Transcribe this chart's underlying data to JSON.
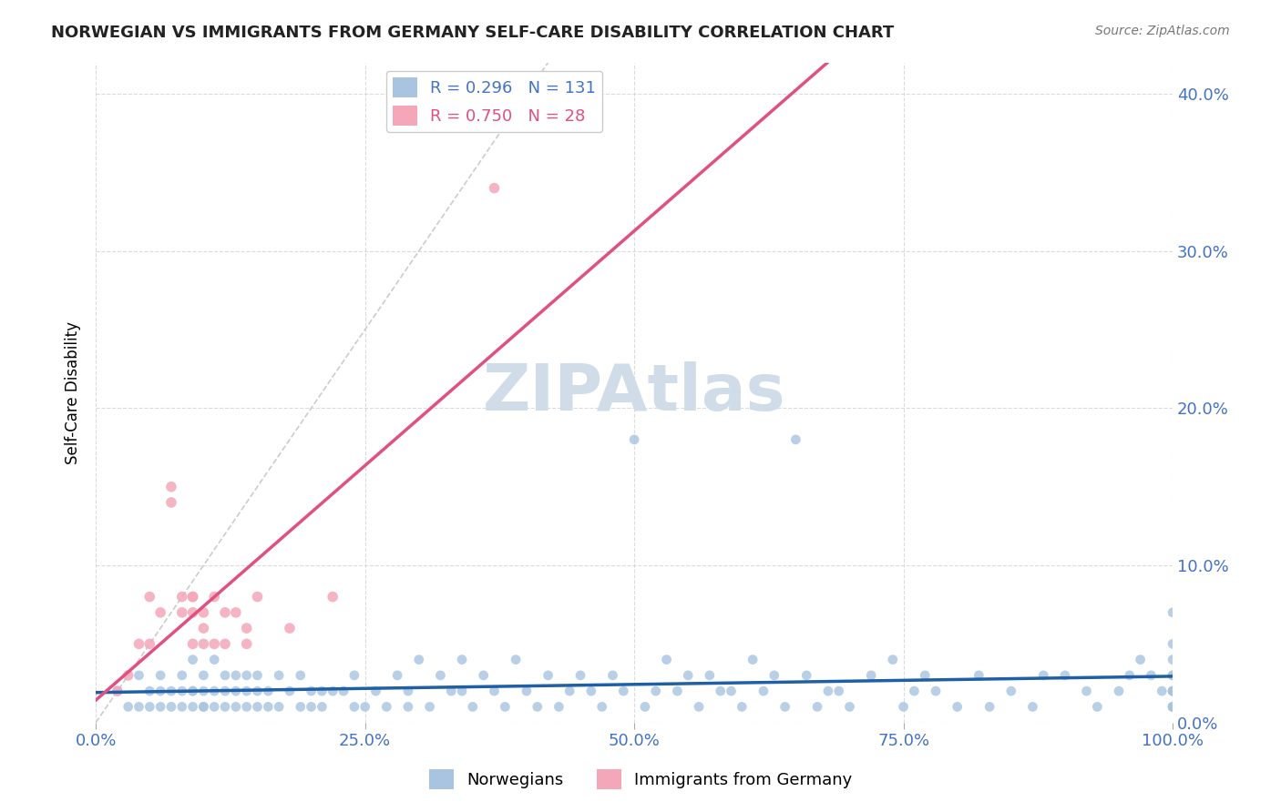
{
  "title": "NORWEGIAN VS IMMIGRANTS FROM GERMANY SELF-CARE DISABILITY CORRELATION CHART",
  "source": "Source: ZipAtlas.com",
  "xlabel_ticks": [
    "0.0%",
    "25.0%",
    "50.0%",
    "75.0%",
    "100.0%"
  ],
  "xlabel_tick_vals": [
    0,
    25,
    50,
    75,
    100
  ],
  "ylabel_ticks": [
    "0.0%",
    "10.0%",
    "20.0%",
    "30.0%",
    "40.0%"
  ],
  "ylabel_tick_vals": [
    0,
    10,
    20,
    30,
    40
  ],
  "ylabel": "Self-Care Disability",
  "legend_labels": [
    "Norwegians",
    "Immigrants from Germany"
  ],
  "r_norwegian": 0.296,
  "n_norwegian": 131,
  "r_germany": 0.75,
  "n_germany": 28,
  "background_color": "#ffffff",
  "norwegian_color": "#a8c4e0",
  "norwegian_line_color": "#1f5fa6",
  "germany_color": "#f4a7b9",
  "germany_line_color": "#e05080",
  "diagonal_color": "#cccccc",
  "watermark_color": "#d0dce8",
  "title_color": "#222222",
  "axis_label_color": "#4472c4",
  "tick_label_color": "#4472c4",
  "legend_r_color_norwegian": "#4472c4",
  "legend_r_color_germany": "#e05080",
  "xlim": [
    0,
    100
  ],
  "ylim": [
    0,
    42
  ],
  "norwegian_x": [
    2,
    3,
    4,
    4,
    5,
    5,
    6,
    6,
    6,
    7,
    7,
    8,
    8,
    8,
    9,
    9,
    9,
    9,
    10,
    10,
    10,
    10,
    11,
    11,
    11,
    12,
    12,
    12,
    13,
    13,
    13,
    14,
    14,
    14,
    15,
    15,
    15,
    16,
    16,
    17,
    17,
    18,
    19,
    19,
    20,
    20,
    21,
    21,
    22,
    23,
    24,
    24,
    25,
    26,
    27,
    28,
    29,
    29,
    30,
    31,
    32,
    33,
    34,
    34,
    35,
    36,
    37,
    38,
    39,
    40,
    41,
    42,
    43,
    44,
    45,
    46,
    47,
    48,
    49,
    50,
    51,
    52,
    53,
    54,
    55,
    56,
    57,
    58,
    59,
    60,
    61,
    62,
    63,
    64,
    65,
    66,
    67,
    68,
    69,
    70,
    72,
    74,
    75,
    76,
    77,
    78,
    80,
    82,
    83,
    85,
    87,
    88,
    90,
    92,
    93,
    95,
    96,
    97,
    98,
    99,
    100,
    100,
    100,
    100,
    100,
    100,
    100,
    100,
    100,
    100,
    100
  ],
  "norwegian_y": [
    2,
    1,
    3,
    1,
    2,
    1,
    3,
    1,
    2,
    2,
    1,
    2,
    3,
    1,
    4,
    2,
    1,
    2,
    1,
    2,
    3,
    1,
    4,
    2,
    1,
    1,
    2,
    3,
    3,
    2,
    1,
    2,
    3,
    1,
    3,
    2,
    1,
    2,
    1,
    3,
    1,
    2,
    1,
    3,
    2,
    1,
    2,
    1,
    2,
    2,
    3,
    1,
    1,
    2,
    1,
    3,
    2,
    1,
    4,
    1,
    3,
    2,
    4,
    2,
    1,
    3,
    2,
    1,
    4,
    2,
    1,
    3,
    1,
    2,
    3,
    2,
    1,
    3,
    2,
    18,
    1,
    2,
    4,
    2,
    3,
    1,
    3,
    2,
    2,
    1,
    4,
    2,
    3,
    1,
    18,
    3,
    1,
    2,
    2,
    1,
    3,
    4,
    1,
    2,
    3,
    2,
    1,
    3,
    1,
    2,
    1,
    3,
    3,
    2,
    1,
    2,
    3,
    4,
    3,
    2,
    2,
    7,
    3,
    4,
    1,
    2,
    1,
    2,
    3,
    1,
    5
  ],
  "germany_x": [
    2,
    3,
    4,
    5,
    5,
    6,
    7,
    7,
    8,
    8,
    9,
    9,
    9,
    9,
    10,
    10,
    10,
    11,
    11,
    12,
    12,
    13,
    14,
    14,
    15,
    18,
    22,
    37
  ],
  "germany_y": [
    2,
    3,
    5,
    5,
    8,
    7,
    15,
    14,
    8,
    7,
    8,
    7,
    8,
    5,
    6,
    7,
    5,
    8,
    5,
    7,
    5,
    7,
    6,
    5,
    8,
    6,
    8,
    34
  ]
}
